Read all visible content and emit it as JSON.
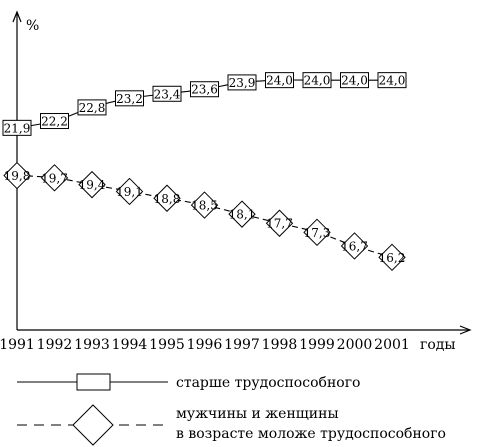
{
  "chart_data": {
    "type": "line",
    "title": "",
    "xlabel": "годы",
    "ylabel": "%",
    "x": [
      "1991",
      "1992",
      "1993",
      "1994",
      "1995",
      "1996",
      "1997",
      "1998",
      "1999",
      "2000",
      "2001"
    ],
    "ylim": [
      13,
      27
    ],
    "grid": false,
    "legend_position": "bottom",
    "series": [
      {
        "name": "старше трудоспособного",
        "marker": "square",
        "line_style": "solid",
        "values": [
          21.9,
          22.2,
          22.8,
          23.2,
          23.4,
          23.6,
          23.9,
          24.0,
          24.0,
          24.0,
          24.0
        ],
        "labels": [
          "21,9",
          "22,2",
          "22,8",
          "23,2",
          "23,4",
          "23,6",
          "23,9",
          "24,0",
          "24,0",
          "24,0",
          "24,0"
        ]
      },
      {
        "name": "мужчины и женщины в возрасте моложе трудоспособного",
        "name_lines": [
          "мужчины и женщины",
          "в возрасте моложе трудоспособного"
        ],
        "marker": "diamond",
        "line_style": "dashed",
        "values": [
          19.8,
          19.7,
          19.4,
          19.1,
          18.8,
          18.5,
          18.1,
          17.7,
          17.3,
          16.7,
          16.2
        ],
        "labels": [
          "19,8",
          "19,7",
          "19,4",
          "19,1",
          "18,8",
          "18,5",
          "18,1",
          "17,7",
          "17,3",
          "16,7",
          "16,2"
        ]
      }
    ]
  }
}
